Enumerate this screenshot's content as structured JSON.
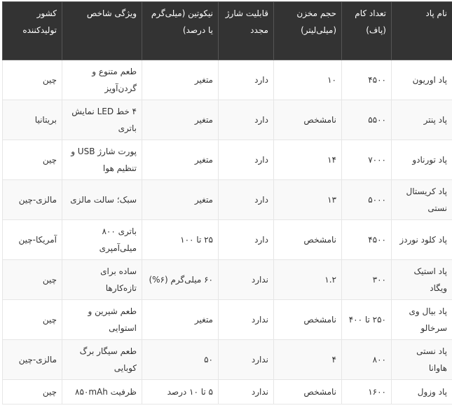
{
  "headers": [
    "نام پاد",
    "تعداد کام (پاف)",
    "حجم مخزن (میلی‌لیتر)",
    "قابلیت شارژ مجدد",
    "نیکوتین (میلی‌گرم یا درصد)",
    "ویژگی شاخص",
    "کشور تولیدکننده"
  ],
  "rows": [
    [
      "پاد اوریون",
      "۴۵۰۰",
      "۱۰",
      "دارد",
      "متغیر",
      "طعم متنوع و گردن‌آویز",
      "چین"
    ],
    [
      "پاد پنتر",
      "۵۵۰۰",
      "نامشخص",
      "دارد",
      "متغیر",
      "۴ خط LED نمایش باتری",
      "بریتانیا"
    ],
    [
      "پاد تورنادو",
      "۷۰۰۰",
      "۱۴",
      "دارد",
      "متغیر",
      "پورت شارژ USB و تنظیم هوا",
      "چین"
    ],
    [
      "پاد کریستال نستی",
      "۵۰۰۰",
      "۱۳",
      "دارد",
      "متغیر",
      "سبک؛ سالت مالزی",
      "مالزی-چین"
    ],
    [
      "پاد کلود نوردز",
      "۴۵۰۰",
      "نامشخص",
      "دارد",
      "۲۵ تا ۱۰۰",
      "باتری ۸۰۰ میلی‌آمپری",
      "آمریکا-چین"
    ],
    [
      "پاد استیک ویگاد",
      "۳۰۰",
      "۱.۲",
      "ندارد",
      "۶۰ میلی‌گرم (۶%)",
      "ساده برای تازه‌کارها",
      "چین"
    ],
    [
      "پاد بیال وی سرخالو",
      "۲۵۰ تا ۴۰۰",
      "نامشخص",
      "ندارد",
      "متغیر",
      "طعم شیرین و استوایی",
      "چین"
    ],
    [
      "پاد نستی هاوانا",
      "۸۰۰",
      "۴",
      "ندارد",
      "۵۰",
      "طعم سیگار برگ کوبایی",
      "مالزی-چین"
    ],
    [
      "پاد وزول",
      "۱۶۰۰",
      "نامشخص",
      "ندارد",
      "۵ تا ۱۰ درصد",
      "ظرفیت ۸۵۰mAh",
      "چین"
    ]
  ]
}
